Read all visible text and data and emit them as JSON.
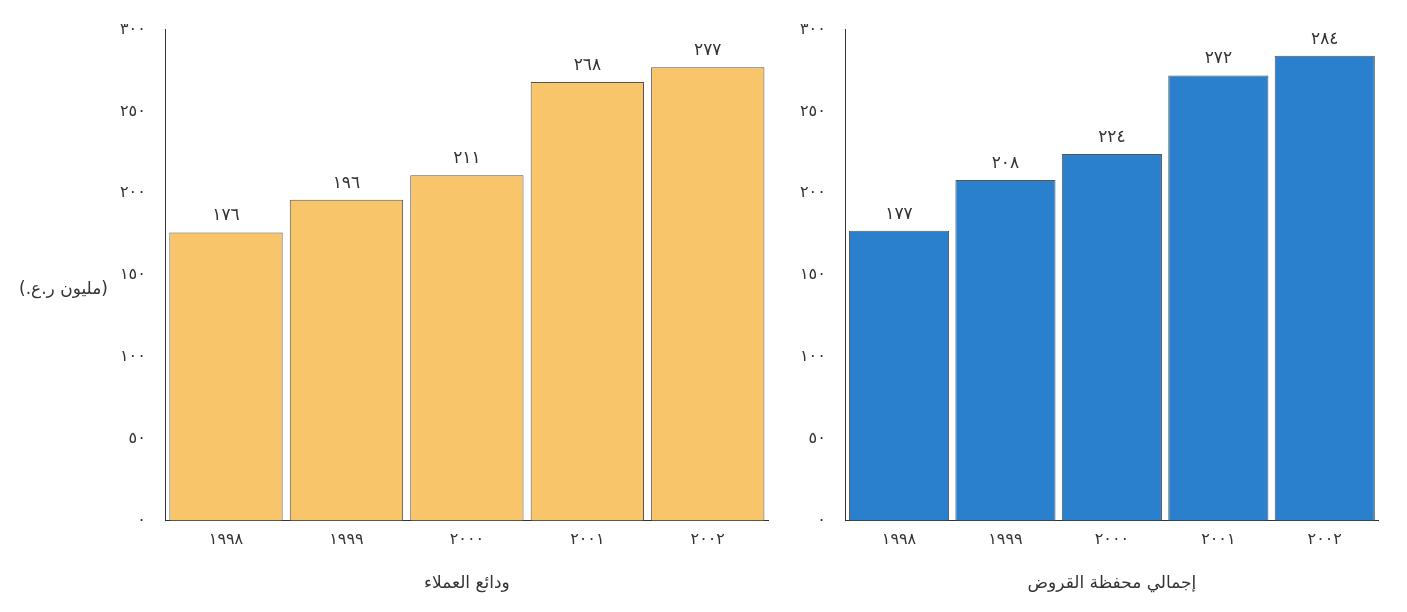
{
  "chart_data": [
    {
      "type": "bar",
      "xlabel": "ودائع العملاء",
      "ylabel": "(مليون ر.ع.)",
      "categories": [
        "١٩٩٨",
        "١٩٩٩",
        "٢٠٠٠",
        "٢٠٠١",
        "٢٠٠٢"
      ],
      "values": [
        176,
        196,
        211,
        268,
        277
      ],
      "value_labels": [
        "١٧٦",
        "١٩٦",
        "٢١١",
        "٢٦٨",
        "٢٧٧"
      ],
      "color": "#f8c56a",
      "ylim": [
        0,
        300
      ],
      "yticks": [
        {
          "value": 0,
          "label": "٠"
        },
        {
          "value": 50,
          "label": "٥٠"
        },
        {
          "value": 100,
          "label": "١٠٠"
        },
        {
          "value": 150,
          "label": "١٥٠"
        },
        {
          "value": 200,
          "label": "٢٠٠"
        },
        {
          "value": 250,
          "label": "٢٥٠"
        },
        {
          "value": 300,
          "label": "٣٠٠"
        }
      ],
      "grid": false
    },
    {
      "type": "bar",
      "xlabel": "إجمالي محفظة القروض",
      "categories": [
        "١٩٩٨",
        "١٩٩٩",
        "٢٠٠٠",
        "٢٠٠١",
        "٢٠٠٢"
      ],
      "values": [
        177,
        208,
        224,
        272,
        284
      ],
      "value_labels": [
        "١٧٧",
        "٢٠٨",
        "٢٢٤",
        "٢٧٢",
        "٢٨٤"
      ],
      "color": "#2a80cc",
      "ylim": [
        0,
        300
      ],
      "yticks": [
        {
          "value": 0,
          "label": "٠"
        },
        {
          "value": 50,
          "label": "٥٠"
        },
        {
          "value": 100,
          "label": "١٠٠"
        },
        {
          "value": 150,
          "label": "١٥٠"
        },
        {
          "value": 200,
          "label": "٢٠٠"
        },
        {
          "value": 250,
          "label": "٢٥٠"
        },
        {
          "value": 300,
          "label": "٣٠٠"
        }
      ],
      "grid": false
    }
  ]
}
